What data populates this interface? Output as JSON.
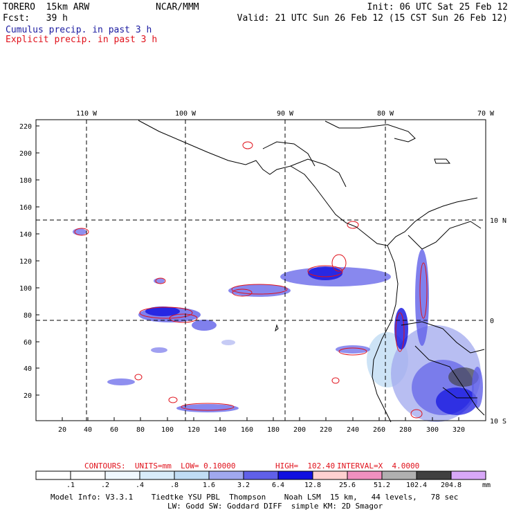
{
  "header": {
    "model": "TORERO  15km ARW",
    "org": "NCAR/MMM",
    "init": "Init: 06 UTC Sat 25 Feb 12",
    "fcst": "Fcst:   39 h",
    "valid": "Valid: 21 UTC Sun 26 Feb 12 (15 CST Sun 26 Feb 12)",
    "legend_cumulus": "Cumulus precip. in past 3 h",
    "legend_explicit": "Explicit precip. in past 3 h"
  },
  "axes": {
    "top_ticks": [
      "110 W",
      "100 W",
      "90 W",
      "80 W",
      "70 W"
    ],
    "right_ticks": [
      "10 N",
      "0",
      "10 S"
    ],
    "x_ticks": [
      "20",
      "40",
      "60",
      "80",
      "100",
      "120",
      "140",
      "160",
      "180",
      "200",
      "220",
      "240",
      "260",
      "280",
      "300",
      "320"
    ],
    "y_ticks": [
      "20",
      "40",
      "60",
      "80",
      "100",
      "120",
      "140",
      "160",
      "180",
      "200",
      "220"
    ]
  },
  "contours_info": {
    "label": "CONTOURS:  UNITS=mm  LOW= 0.10000",
    "high": "HIGH=  102.40",
    "interval": "INTERVAL=X  4.0000"
  },
  "colorbar": {
    "labels": [
      ".1",
      ".2",
      ".4",
      ".8",
      "1.6",
      "3.2",
      "6.4",
      "12.8",
      "25.6",
      "51.2",
      "102.4",
      "204.8"
    ],
    "unit": "mm",
    "colors": [
      "#ffffff",
      "#ffffff",
      "#f0f8ff",
      "#d8ecfa",
      "#c0dcf4",
      "#a0a8ee",
      "#6060e8",
      "#1010e0",
      "#ffd0d0",
      "#f090c0",
      "#b0b0b0",
      "#404040",
      "#d8a8f8"
    ]
  },
  "model_info": {
    "line1": "Model Info: V3.3.1    Tiedtke YSU PBL  Thompson    Noah LSM  15 km,   44 levels,   78 sec",
    "line2": "LW: Godd SW: Goddard DIFF  simple KM: 2D Smagor"
  }
}
